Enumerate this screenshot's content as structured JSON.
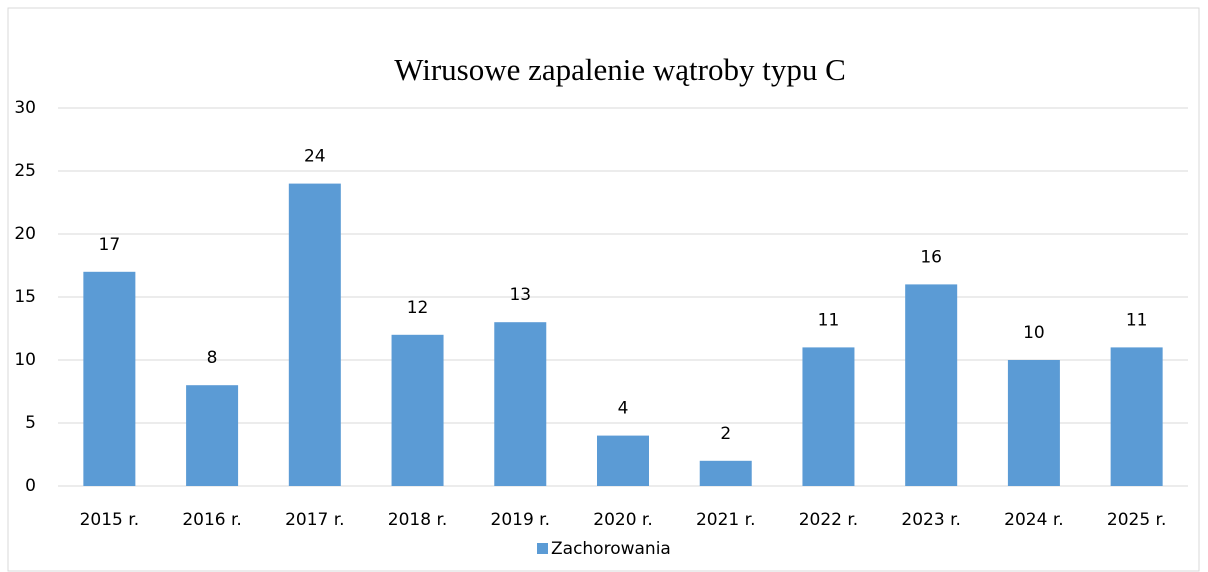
{
  "chart_data": {
    "type": "bar",
    "title": "Wirusowe zapalenie wątroby typu C",
    "categories": [
      "2015 r.",
      "2016 r.",
      "2017 r.",
      "2018 r.",
      "2019 r.",
      "2020 r.",
      "2021 r.",
      "2022 r.",
      "2023 r.",
      "2024 r.",
      "2025 r."
    ],
    "series": [
      {
        "name": "Zachorowania",
        "color": "#5b9bd5",
        "values": [
          17,
          8,
          24,
          12,
          13,
          4,
          2,
          11,
          16,
          10,
          11
        ]
      }
    ],
    "ylim": [
      0,
      30
    ],
    "yticks": [
      0,
      5,
      10,
      15,
      20,
      25,
      30
    ],
    "grid": true,
    "legend": "bottom",
    "data_labels": true
  }
}
